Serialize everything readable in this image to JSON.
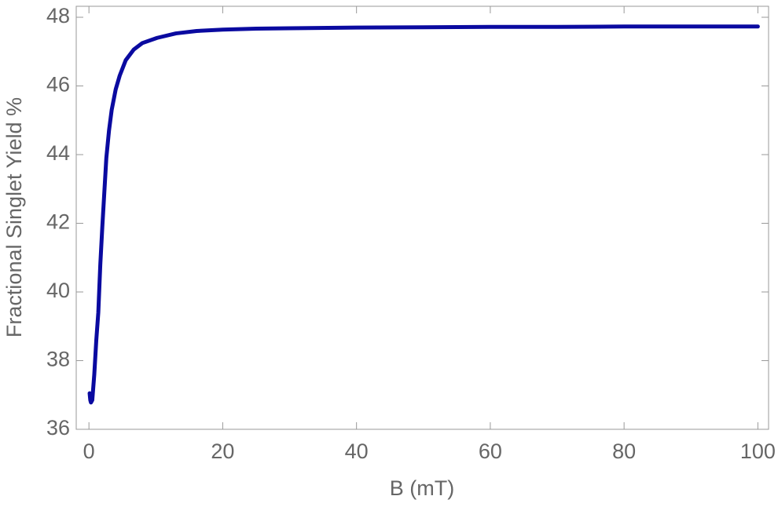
{
  "chart_data": {
    "type": "line",
    "x_label": "B (mT)",
    "y_label": "Fractional Singlet Yield %",
    "series": [
      {
        "color": "#0a0aa0",
        "x": [
          0.1,
          0.2,
          0.3,
          0.5,
          0.8,
          1.1,
          1.4,
          1.7,
          2.0,
          2.3,
          2.6,
          3.0,
          3.4,
          4.0,
          4.6,
          5.5,
          6.7,
          8.0,
          10.2,
          13.0,
          16.1,
          20,
          25,
          30,
          40,
          50,
          60,
          70,
          80,
          90,
          100
        ],
        "values": [
          37.05,
          36.85,
          36.78,
          36.85,
          37.6,
          38.6,
          39.4,
          40.8,
          41.9,
          42.9,
          43.9,
          44.7,
          45.3,
          45.9,
          46.3,
          46.75,
          47.06,
          47.25,
          47.4,
          47.53,
          47.6,
          47.64,
          47.67,
          47.68,
          47.7,
          47.71,
          47.72,
          47.72,
          47.73,
          47.73,
          47.73
        ]
      }
    ],
    "xlim": [
      -1.9,
      101.6
    ],
    "ylim": [
      36,
      48.32
    ],
    "xticks": [
      0,
      20,
      40,
      60,
      80,
      100
    ],
    "yticks": [
      36,
      38,
      40,
      42,
      44,
      46,
      48
    ]
  }
}
